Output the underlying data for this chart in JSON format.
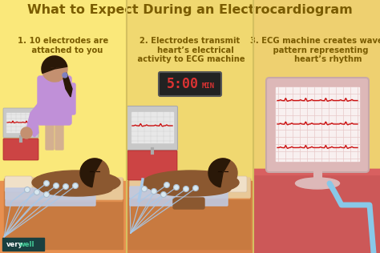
{
  "title": "What to Expect During an Electrocardiogram",
  "title_color": "#7A5C00",
  "title_fontsize": 11.5,
  "bg_color": "#FAE87A",
  "panel1_label": "1. 10 electrodes are\n   attached to you",
  "panel2_label": "2. Electrodes transmit\n    heart’s electrical\n activity to ECG machine",
  "panel3_label": "3. ECG machine creates wave\n   pattern representing\n        heart’s rhythm",
  "label_color": "#7A5C00",
  "label_fontsize": 7.2,
  "divider_color": "#D4C060",
  "bed_color_dark": "#C87A40",
  "bed_color_mid": "#E09050",
  "bed_color_light": "#F0B878",
  "mattress_color": "#E8C898",
  "pillow_color": "#F0E0C8",
  "patient_skin": "#8B5830",
  "patient_skin_light": "#A06838",
  "patient_hair": "#2A1808",
  "nurse_skin": "#C49070",
  "nurse_hair": "#2A1808",
  "nurse_shirt": "#C090D8",
  "monitor_frame": "#C8C8C8",
  "monitor_screen_bg": "#E8E8E8",
  "monitor_grid": "#CCCCCC",
  "ecg_color": "#CC1111",
  "timer_bg": "#222222",
  "timer_text": "#DD3333",
  "electrode_color": "#D8E8F0",
  "wire_color": "#A8C8E8",
  "cover_color": "#C0C8E0",
  "verywell_bg": "#1A4040",
  "verywell_well_color": "#44CC99",
  "big_monitor_frame": "#DDB8B8",
  "big_monitor_screen": "#F8F0F0",
  "big_monitor_grid": "#E8C8C8",
  "wall1_color": "#FAE87A",
  "wall2_color": "#F0D870",
  "wall3_color": "#EED070",
  "floor1_color": "#E89050",
  "floor2_color": "#D88048",
  "floor3_color": "#CC5858",
  "red_machine": "#CC4444",
  "cable_color": "#88C8E8",
  "stand_color": "#DDB8B8",
  "stand_base_color": "#DDB8B8"
}
